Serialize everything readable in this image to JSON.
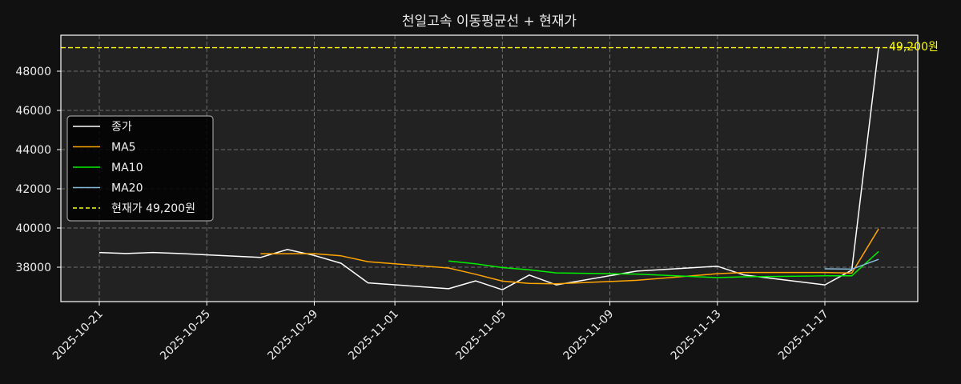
{
  "chart_data": {
    "type": "line",
    "title": "천일고속 이동평균선 + 현재가",
    "xlabel": "",
    "ylabel": "",
    "ylim": [
      36300,
      49800
    ],
    "grid": true,
    "legend_position": "upper-left (mid-left)",
    "x": [
      "2025-10-21",
      "2025-10-22",
      "2025-10-23",
      "2025-10-24",
      "2025-10-27",
      "2025-10-28",
      "2025-10-29",
      "2025-10-30",
      "2025-10-31",
      "2025-11-03",
      "2025-11-04",
      "2025-11-05",
      "2025-11-06",
      "2025-11-07",
      "2025-11-10",
      "2025-11-13",
      "2025-11-14",
      "2025-11-17",
      "2025-11-18",
      "2025-11-19"
    ],
    "x_ticks": [
      "2025-10-21",
      "2025-10-25",
      "2025-10-29",
      "2025-11-01",
      "2025-11-05",
      "2025-11-09",
      "2025-11-13",
      "2025-11-17"
    ],
    "y_ticks": [
      38000,
      40000,
      42000,
      44000,
      46000,
      48000
    ],
    "series": [
      {
        "name": "종가",
        "color": "#ffffff",
        "style": "solid",
        "values": [
          38750,
          38700,
          38750,
          38700,
          38500,
          38900,
          38600,
          38200,
          37200,
          36900,
          37300,
          36850,
          37600,
          37100,
          37800,
          38050,
          37600,
          37100,
          37850,
          49200
        ]
      },
      {
        "name": "MA5",
        "color": "#ffa500",
        "style": "solid",
        "values": [
          null,
          null,
          null,
          null,
          38680,
          38690,
          38690,
          38580,
          38280,
          37960,
          37640,
          37290,
          37170,
          37150,
          37330,
          37670,
          37730,
          37730,
          37700,
          39950
        ]
      },
      {
        "name": "MA10",
        "color": "#00ee00",
        "style": "solid",
        "values": [
          null,
          null,
          null,
          null,
          null,
          null,
          null,
          null,
          null,
          38320,
          38170,
          37980,
          37870,
          37710,
          37650,
          37470,
          37510,
          37560,
          37560,
          38800
        ]
      },
      {
        "name": "MA20",
        "color": "#87bcd8",
        "style": "solid",
        "values": [
          null,
          null,
          null,
          null,
          null,
          null,
          null,
          null,
          null,
          null,
          null,
          null,
          null,
          null,
          null,
          null,
          null,
          37920,
          37900,
          38400
        ]
      }
    ],
    "hlines": [
      {
        "name": "현재가 49,200원",
        "value": 49200,
        "color": "#ffff00",
        "style": "dashed",
        "annotation": "49,200원"
      }
    ]
  },
  "legend": {
    "items": [
      {
        "label": "종가",
        "color": "#ffffff",
        "dash": false
      },
      {
        "label": "MA5",
        "color": "#ffa500",
        "dash": false
      },
      {
        "label": "MA10",
        "color": "#00ee00",
        "dash": false
      },
      {
        "label": "MA20",
        "color": "#87bcd8",
        "dash": false
      },
      {
        "label": "현재가 49,200원",
        "color": "#ffff00",
        "dash": true
      }
    ]
  },
  "annotation": {
    "current_price_label": "49,200원"
  },
  "colors": {
    "background": "#111111",
    "plot_bg": "#222222",
    "grid": "#6e6e6e",
    "frame": "#ffffff"
  }
}
